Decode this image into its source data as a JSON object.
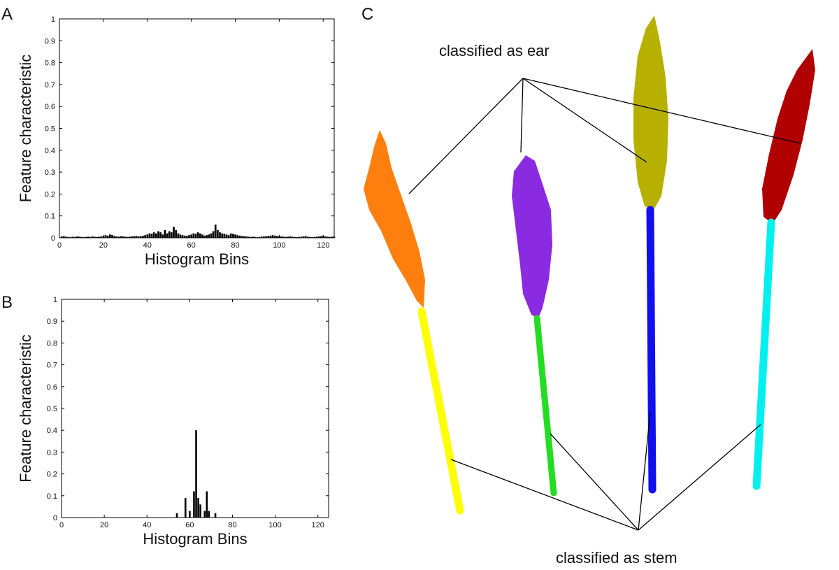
{
  "chart_data": [
    {
      "type": "bar",
      "label": "A",
      "xlabel": "Histogram Bins",
      "ylabel": "Feature characteristic",
      "color": "#000000",
      "x": [
        1,
        2,
        3,
        4,
        5,
        6,
        7,
        8,
        9,
        10,
        11,
        12,
        13,
        14,
        15,
        16,
        17,
        18,
        19,
        20,
        21,
        22,
        23,
        24,
        25,
        26,
        27,
        28,
        29,
        30,
        31,
        32,
        33,
        34,
        35,
        36,
        37,
        38,
        39,
        40,
        41,
        42,
        43,
        44,
        45,
        46,
        47,
        48,
        49,
        50,
        51,
        52,
        53,
        54,
        55,
        56,
        57,
        58,
        59,
        60,
        61,
        62,
        63,
        64,
        65,
        66,
        67,
        68,
        69,
        70,
        71,
        72,
        73,
        74,
        75,
        76,
        77,
        78,
        79,
        80,
        81,
        82,
        83,
        84,
        85,
        86,
        87,
        88,
        89,
        90,
        91,
        92,
        93,
        94,
        95,
        96,
        97,
        98,
        99,
        100,
        101,
        102,
        103,
        104,
        105,
        106,
        107,
        108,
        109,
        110,
        111,
        112,
        113,
        114,
        115,
        116,
        117,
        118,
        119,
        120,
        121,
        122,
        123,
        124,
        125
      ],
      "values": [
        0.006,
        0.007,
        0.005,
        0.004,
        0.003,
        0.005,
        0.004,
        0.006,
        0.005,
        0.004,
        0.003,
        0.004,
        0.005,
        0.004,
        0.006,
        0.005,
        0.004,
        0.005,
        0.006,
        0.007,
        0.012,
        0.01,
        0.015,
        0.013,
        0.008,
        0.006,
        0.005,
        0.007,
        0.006,
        0.005,
        0.004,
        0.005,
        0.006,
        0.007,
        0.008,
        0.006,
        0.007,
        0.009,
        0.012,
        0.015,
        0.02,
        0.018,
        0.025,
        0.02,
        0.03,
        0.025,
        0.015,
        0.035,
        0.02,
        0.03,
        0.025,
        0.05,
        0.035,
        0.02,
        0.015,
        0.012,
        0.01,
        0.009,
        0.012,
        0.015,
        0.02,
        0.018,
        0.025,
        0.02,
        0.015,
        0.01,
        0.012,
        0.015,
        0.02,
        0.03,
        0.06,
        0.035,
        0.025,
        0.02,
        0.018,
        0.015,
        0.012,
        0.02,
        0.018,
        0.015,
        0.012,
        0.01,
        0.008,
        0.007,
        0.006,
        0.005,
        0.004,
        0.005,
        0.004,
        0.003,
        0.004,
        0.005,
        0.006,
        0.007,
        0.008,
        0.01,
        0.012,
        0.01,
        0.008,
        0.007,
        0.006,
        0.005,
        0.004,
        0.005,
        0.006,
        0.005,
        0.004,
        0.003,
        0.004,
        0.005,
        0.006,
        0.007,
        0.005,
        0.004,
        0.003,
        0.004,
        0.005,
        0.006,
        0.007,
        0.008,
        0.006,
        0.005,
        0.004,
        0.005,
        0.006
      ],
      "xlim": [
        0,
        125
      ],
      "xticks": [
        0,
        20,
        40,
        60,
        80,
        100,
        120
      ],
      "ylim": [
        0,
        1
      ],
      "yticks": [
        0,
        0.1,
        0.2,
        0.3,
        0.4,
        0.5,
        0.6,
        0.7,
        0.8,
        0.9,
        1
      ]
    },
    {
      "type": "bar",
      "label": "B",
      "xlabel": "Histogram Bins",
      "ylabel": "Feature characteristic",
      "color": "#000000",
      "x": [
        54,
        58,
        60,
        62,
        63,
        64,
        65,
        67,
        68,
        69,
        72
      ],
      "values": [
        0.02,
        0.09,
        0.03,
        0.12,
        0.4,
        0.09,
        0.06,
        0.03,
        0.12,
        0.03,
        0.02
      ],
      "xlim": [
        0,
        125
      ],
      "xticks": [
        0,
        20,
        40,
        60,
        80,
        100,
        120
      ],
      "ylim": [
        0,
        1
      ],
      "yticks": [
        0,
        0.1,
        0.2,
        0.3,
        0.4,
        0.5,
        0.6,
        0.7,
        0.8,
        0.9,
        1
      ]
    }
  ],
  "illustration": {
    "label": "C",
    "ear_annotation": "classified as ear",
    "stem_annotation": "classified as stem"
  }
}
